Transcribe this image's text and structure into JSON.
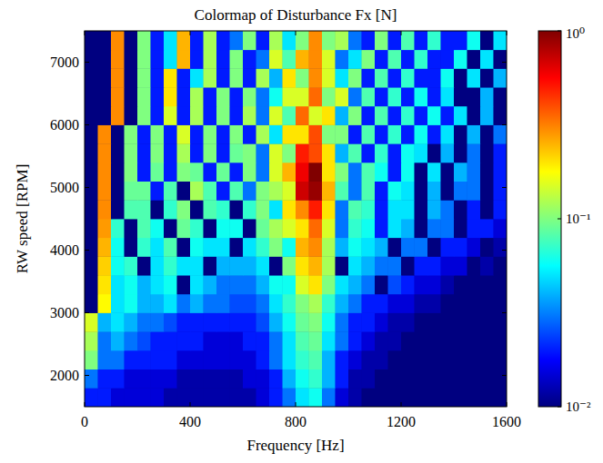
{
  "chart_data": {
    "type": "heatmap",
    "title": "Colormap of Disturbance Fx [N]",
    "x_label": "Frequency [Hz]",
    "y_label": "RW speed [RPM]",
    "xlim": [
      0,
      1600
    ],
    "xticks": [
      0,
      400,
      800,
      1200,
      1600
    ],
    "ylim": [
      1500,
      7500
    ],
    "yticks": [
      2000,
      3000,
      4000,
      5000,
      6000,
      7000
    ],
    "x_bins": [
      0,
      50,
      100,
      150,
      200,
      250,
      300,
      350,
      400,
      450,
      500,
      550,
      600,
      650,
      700,
      750,
      800,
      850,
      900,
      950,
      1000,
      1050,
      1100,
      1150,
      1200,
      1250,
      1300,
      1350,
      1400,
      1450,
      1500,
      1550,
      1600
    ],
    "y_bins": [
      1500,
      1800,
      2100,
      2400,
      2700,
      3000,
      3300,
      3600,
      3900,
      4200,
      4500,
      4800,
      5100,
      5400,
      5700,
      6000,
      6300,
      6600,
      6900,
      7200,
      7500
    ],
    "cells": [
      [
        0.02,
        0.02,
        0.015,
        0.015,
        0.015,
        0.015,
        0.012,
        0.012,
        0.012,
        0.012,
        0.012,
        0.012,
        0.012,
        0.015,
        0.02,
        0.03,
        0.05,
        0.06,
        0.03,
        0.015,
        0.012,
        0.01,
        0.01,
        0.01,
        0.01,
        0.01,
        0.01,
        0.01,
        0.01,
        0.01,
        0.01,
        0.01
      ],
      [
        0.03,
        0.02,
        0.02,
        0.015,
        0.015,
        0.015,
        0.015,
        0.012,
        0.012,
        0.012,
        0.012,
        0.012,
        0.015,
        0.015,
        0.02,
        0.04,
        0.06,
        0.07,
        0.04,
        0.02,
        0.012,
        0.012,
        0.01,
        0.01,
        0.01,
        0.01,
        0.01,
        0.01,
        0.01,
        0.01,
        0.01,
        0.01
      ],
      [
        0.1,
        0.03,
        0.03,
        0.02,
        0.02,
        0.02,
        0.02,
        0.015,
        0.015,
        0.015,
        0.015,
        0.015,
        0.015,
        0.02,
        0.03,
        0.05,
        0.07,
        0.08,
        0.04,
        0.02,
        0.015,
        0.012,
        0.012,
        0.01,
        0.01,
        0.01,
        0.01,
        0.01,
        0.01,
        0.01,
        0.01,
        0.01
      ],
      [
        0.12,
        0.03,
        0.04,
        0.03,
        0.025,
        0.02,
        0.02,
        0.02,
        0.02,
        0.015,
        0.015,
        0.015,
        0.02,
        0.02,
        0.03,
        0.05,
        0.08,
        0.09,
        0.05,
        0.03,
        0.02,
        0.015,
        0.012,
        0.012,
        0.01,
        0.01,
        0.01,
        0.01,
        0.01,
        0.01,
        0.01,
        0.01
      ],
      [
        0.15,
        0.04,
        0.05,
        0.04,
        0.03,
        0.03,
        0.025,
        0.02,
        0.02,
        0.02,
        0.02,
        0.02,
        0.02,
        0.025,
        0.04,
        0.06,
        0.09,
        0.1,
        0.06,
        0.03,
        0.02,
        0.02,
        0.015,
        0.012,
        0.012,
        0.01,
        0.01,
        0.01,
        0.01,
        0.01,
        0.01,
        0.01
      ],
      [
        0.01,
        0.18,
        0.05,
        0.06,
        0.04,
        0.04,
        0.05,
        0.03,
        0.04,
        0.03,
        0.03,
        0.025,
        0.025,
        0.03,
        0.05,
        0.07,
        0.1,
        0.12,
        0.07,
        0.04,
        0.03,
        0.02,
        0.02,
        0.015,
        0.015,
        0.012,
        0.012,
        0.01,
        0.01,
        0.01,
        0.01,
        0.01
      ],
      [
        0.01,
        0.2,
        0.05,
        0.06,
        0.04,
        0.05,
        0.06,
        0.01,
        0.05,
        0.04,
        0.03,
        0.03,
        0.03,
        0.04,
        0.06,
        0.06,
        0.15,
        0.2,
        0.1,
        0.05,
        0.04,
        0.03,
        0.01,
        0.025,
        0.02,
        0.015,
        0.015,
        0.012,
        0.01,
        0.01,
        0.01,
        0.01
      ],
      [
        0.01,
        0.22,
        0.06,
        0.07,
        0.01,
        0.05,
        0.07,
        0.05,
        0.05,
        0.01,
        0.04,
        0.04,
        0.04,
        0.05,
        0.01,
        0.1,
        0.2,
        0.25,
        0.12,
        0.01,
        0.05,
        0.04,
        0.03,
        0.03,
        0.01,
        0.02,
        0.02,
        0.015,
        0.015,
        0.01,
        0.012,
        0.01
      ],
      [
        0.01,
        0.25,
        0.06,
        0.01,
        0.07,
        0.05,
        0.08,
        0.01,
        0.06,
        0.05,
        0.05,
        0.01,
        0.05,
        0.07,
        0.1,
        0.06,
        0.25,
        0.3,
        0.12,
        0.04,
        0.06,
        0.05,
        0.04,
        0.01,
        0.03,
        0.03,
        0.01,
        0.02,
        0.02,
        0.015,
        0.01,
        0.012
      ],
      [
        0.01,
        0.28,
        0.07,
        0.01,
        0.08,
        0.06,
        0.01,
        0.09,
        0.07,
        0.01,
        0.06,
        0.06,
        0.01,
        0.09,
        0.12,
        0.15,
        0.2,
        0.35,
        0.15,
        0.03,
        0.07,
        0.06,
        0.02,
        0.05,
        0.04,
        0.01,
        0.03,
        0.03,
        0.01,
        0.02,
        0.02,
        0.015
      ],
      [
        0.01,
        0.3,
        0.01,
        0.08,
        0.08,
        0.01,
        0.07,
        0.1,
        0.01,
        0.08,
        0.07,
        0.01,
        0.07,
        0.1,
        0.05,
        0.2,
        0.3,
        0.5,
        0.2,
        0.03,
        0.08,
        0.07,
        0.02,
        0.05,
        0.05,
        0.01,
        0.04,
        0.03,
        0.01,
        0.02,
        0.01,
        0.02
      ],
      [
        0.01,
        0.3,
        0.01,
        0.09,
        0.09,
        0.02,
        0.08,
        0.01,
        0.12,
        0.08,
        0.02,
        0.08,
        0.03,
        0.1,
        0.12,
        0.15,
        0.7,
        0.9,
        0.25,
        0.08,
        0.03,
        0.08,
        0.02,
        0.06,
        0.05,
        0.01,
        0.04,
        0.01,
        0.03,
        0.03,
        0.01,
        0.02
      ],
      [
        0.01,
        0.3,
        0.01,
        0.1,
        0.02,
        0.09,
        0.02,
        0.1,
        0.09,
        0.02,
        0.09,
        0.02,
        0.1,
        0.03,
        0.15,
        0.25,
        0.6,
        1,
        0.2,
        0.1,
        0.03,
        0.08,
        0.06,
        0.02,
        0.06,
        0.01,
        0.05,
        0.01,
        0.04,
        0.03,
        0.01,
        0.02
      ],
      [
        0.01,
        0.3,
        0.01,
        0.1,
        0.02,
        0.1,
        0.02,
        0.12,
        0.02,
        0.1,
        0.02,
        0.09,
        0.1,
        0.03,
        0.15,
        0.1,
        0.5,
        0.4,
        0.2,
        0.04,
        0.08,
        0.02,
        0.07,
        0.02,
        0.06,
        0.05,
        0.01,
        0.04,
        0.01,
        0.03,
        0.01,
        0.02
      ],
      [
        0.01,
        0.3,
        0.01,
        0.1,
        0.02,
        0.1,
        0.02,
        0.15,
        0.02,
        0.1,
        0.02,
        0.1,
        0.02,
        0.12,
        0.05,
        0.2,
        0.2,
        0.4,
        0.1,
        0.1,
        0.02,
        0.08,
        0.02,
        0.07,
        0.02,
        0.06,
        0.02,
        0.05,
        0.01,
        0.04,
        0.01,
        0.03
      ],
      [
        0.01,
        0.01,
        0.3,
        0.01,
        0.1,
        0.02,
        0.15,
        0.02,
        0.12,
        0.02,
        0.1,
        0.02,
        0.12,
        0.03,
        0.15,
        0.08,
        0.35,
        0.15,
        0.2,
        0.04,
        0.1,
        0.02,
        0.08,
        0.02,
        0.07,
        0.02,
        0.06,
        0.02,
        0.05,
        0.01,
        0.04,
        0.01
      ],
      [
        0.01,
        0.01,
        0.3,
        0.01,
        0.1,
        0.02,
        0.2,
        0.02,
        0.12,
        0.02,
        0.1,
        0.02,
        0.1,
        0.03,
        0.06,
        0.15,
        0.15,
        0.35,
        0.1,
        0.15,
        0.03,
        0.08,
        0.02,
        0.07,
        0.02,
        0.06,
        0.02,
        0.05,
        0.01,
        0.01,
        0.04,
        0.01
      ],
      [
        0.01,
        0.01,
        0.3,
        0.01,
        0.1,
        0.02,
        0.2,
        0.02,
        0.05,
        0.12,
        0.02,
        0.1,
        0.02,
        0.12,
        0.04,
        0.2,
        0.1,
        0.3,
        0.15,
        0.05,
        0.1,
        0.02,
        0.08,
        0.02,
        0.07,
        0.02,
        0.02,
        0.06,
        0.01,
        0.05,
        0.01,
        0.04
      ],
      [
        0.01,
        0.01,
        0.3,
        0.01,
        0.1,
        0.02,
        0.05,
        0.25,
        0.02,
        0.12,
        0.02,
        0.1,
        0.02,
        0.03,
        0.15,
        0.08,
        0.25,
        0.3,
        0.15,
        0.03,
        0.05,
        0.1,
        0.02,
        0.08,
        0.02,
        0.07,
        0.02,
        0.02,
        0.06,
        0.01,
        0.05,
        0.01
      ],
      [
        0.01,
        0.01,
        0.3,
        0.01,
        0.1,
        0.02,
        0.05,
        0.25,
        0.02,
        0.12,
        0.02,
        0.03,
        0.1,
        0.02,
        0.12,
        0.05,
        0.1,
        0.3,
        0.1,
        0.12,
        0.03,
        0.02,
        0.1,
        0.02,
        0.08,
        0.02,
        0.07,
        0.02,
        0.02,
        0.06,
        0.01,
        0.05
      ]
    ],
    "colorbar_lim": [
      0.01,
      1
    ],
    "colorbar_ticks": [
      {
        "value": 1,
        "label": "10⁰"
      },
      {
        "value": 0.1,
        "label": "10⁻¹"
      },
      {
        "value": 0.01,
        "label": "10⁻²"
      }
    ]
  }
}
